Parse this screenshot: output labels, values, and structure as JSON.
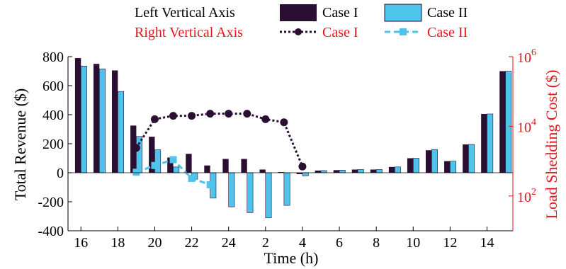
{
  "legend": {
    "left_axis_label": "Left Vertical Axis",
    "right_axis_label": "Right Vertical Axis",
    "left_color": "#000000",
    "right_color": "#e8141b",
    "case1": "Case I",
    "case2": "Case II"
  },
  "chart_data": {
    "type": "bar",
    "title": "",
    "xlabel": "Time (h)",
    "ylabel": "Total Revenue ($)",
    "ylabel_right": "Load Shedding Cost ($)",
    "ylim": [
      -400,
      800
    ],
    "y_ticks": [
      -400,
      -200,
      0,
      200,
      400,
      600,
      800
    ],
    "y2_scale": "log",
    "y2lim": [
      10,
      1000000
    ],
    "y2_ticks": [
      {
        "value": 100,
        "base": "10",
        "exp": "2"
      },
      {
        "value": 10000,
        "base": "10",
        "exp": "4"
      },
      {
        "value": 1000000,
        "base": "10",
        "exp": "6"
      }
    ],
    "x_tick_labels": [
      "16",
      "18",
      "20",
      "22",
      "24",
      "2",
      "4",
      "6",
      "8",
      "10",
      "12",
      "14"
    ],
    "hours": [
      "16",
      "17",
      "18",
      "19",
      "20",
      "21",
      "22",
      "23",
      "24",
      "1",
      "2",
      "3",
      "4",
      "5",
      "6",
      "7",
      "8",
      "9",
      "10",
      "11",
      "12",
      "13",
      "14",
      "15"
    ],
    "grid": false,
    "series": [
      {
        "name": "Case I",
        "axis": "left",
        "kind": "bar",
        "color": "#2a0f33",
        "values": [
          790,
          750,
          705,
          325,
          248,
          105,
          130,
          50,
          95,
          95,
          22,
          5,
          -10,
          15,
          18,
          22,
          22,
          40,
          100,
          155,
          80,
          195,
          405,
          700
        ]
      },
      {
        "name": "Case II",
        "axis": "left",
        "kind": "bar",
        "color": "#4ec3ec",
        "values": [
          735,
          715,
          560,
          250,
          158,
          40,
          -45,
          -175,
          -235,
          -275,
          -310,
          -225,
          -22,
          15,
          18,
          22,
          22,
          40,
          100,
          160,
          80,
          195,
          405,
          700
        ]
      },
      {
        "name": "Case I",
        "axis": "right",
        "kind": "line",
        "color": "#2a0f33",
        "x": [
          "19",
          "20",
          "21",
          "22",
          "23",
          "24",
          "1",
          "2",
          "3",
          "4"
        ],
        "values": [
          2400,
          16000,
          20000,
          20000,
          23000,
          23000,
          23000,
          16000,
          13000,
          700
        ]
      },
      {
        "name": "Case II",
        "axis": "right",
        "kind": "line",
        "color": "#4ec3ec",
        "x": [
          "19",
          "20",
          "21",
          "22",
          "23"
        ],
        "values": [
          480,
          750,
          1100,
          320,
          210
        ]
      }
    ]
  }
}
